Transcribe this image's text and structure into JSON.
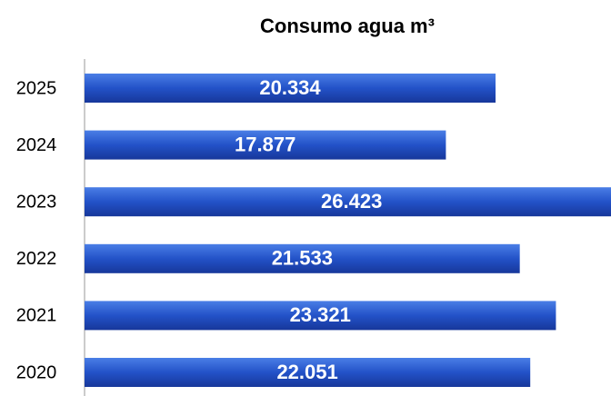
{
  "chart_data": {
    "type": "bar",
    "orientation": "horizontal",
    "title": "Consumo agua m³",
    "categories": [
      "2025",
      "2024",
      "2023",
      "2022",
      "2021",
      "2020"
    ],
    "values": [
      20334,
      17877,
      26423,
      21533,
      23321,
      22051
    ],
    "value_labels": [
      "20.334",
      "17.877",
      "26.423",
      "21.533",
      "23.321",
      "22.051"
    ],
    "color": "#2352c8"
  }
}
